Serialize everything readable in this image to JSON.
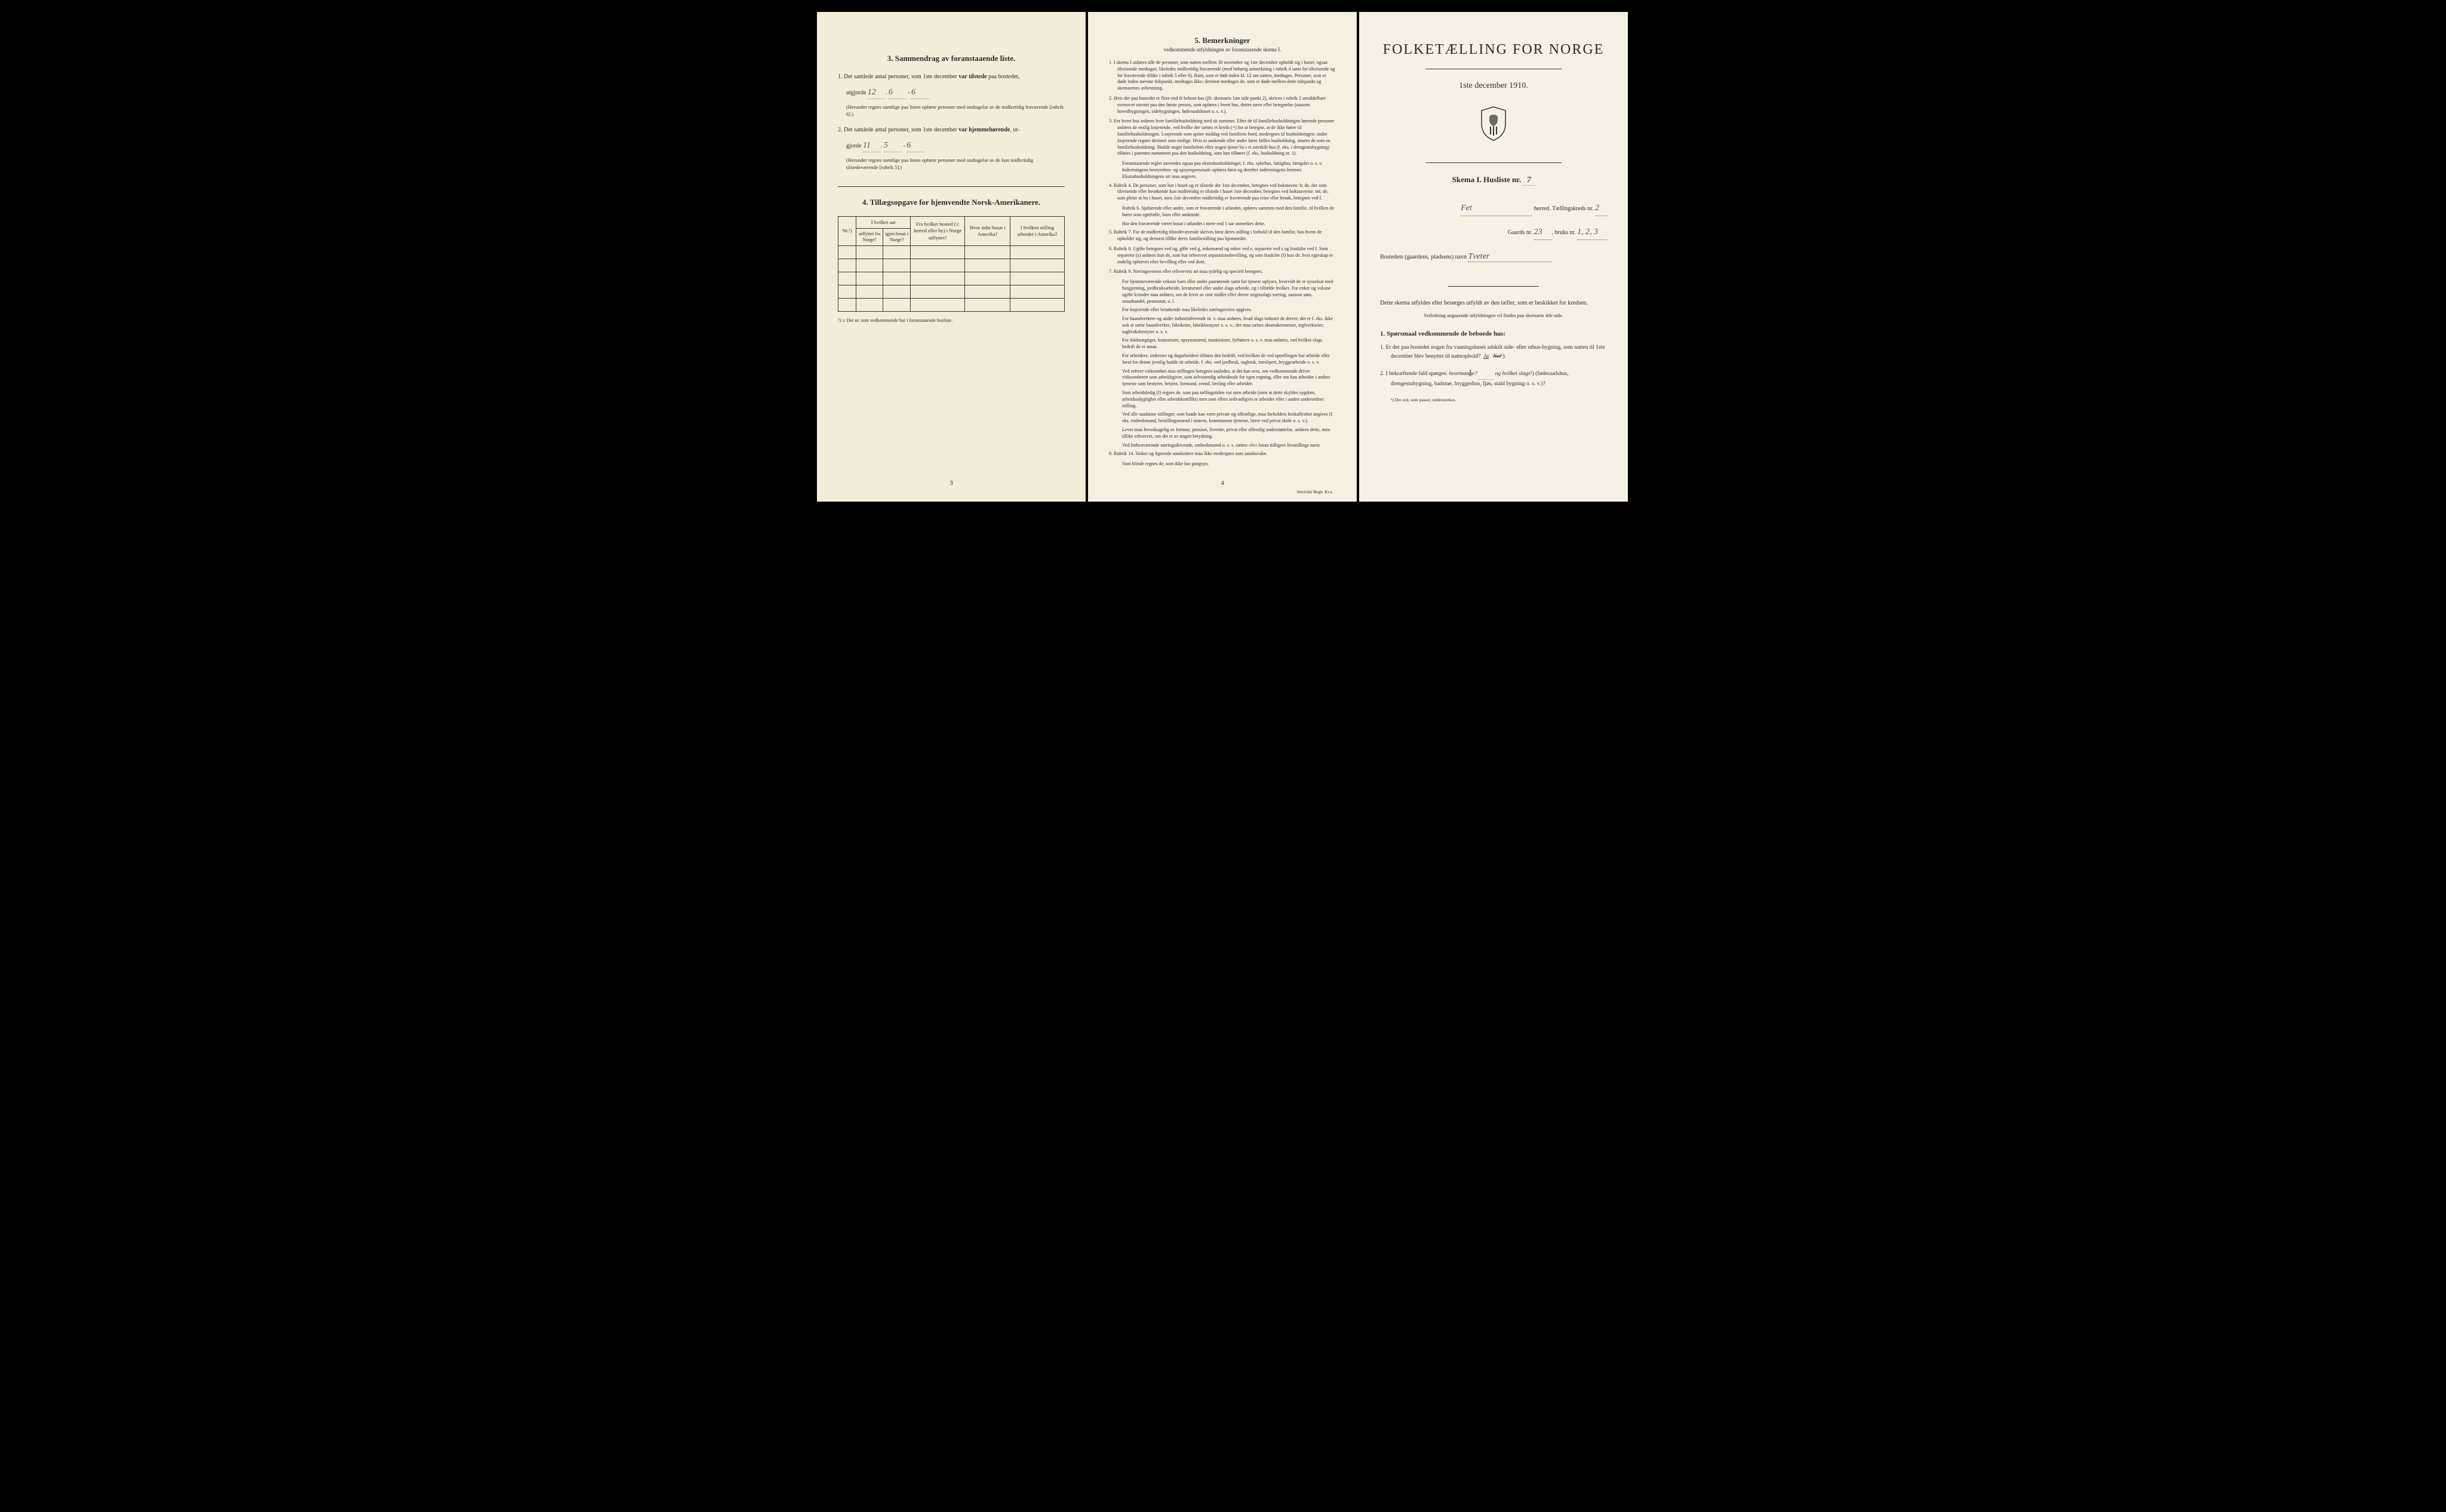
{
  "colors": {
    "paper1": "#f2ecd8",
    "paper2": "#f5f0e2",
    "paper3": "#f6f1e4",
    "ink": "#2a2a2a",
    "handwriting": "#4a4a6a",
    "border": "#333333",
    "background": "#000000"
  },
  "typography": {
    "body_family": "Georgia, Times New Roman, serif",
    "handwriting_family": "Brush Script MT, cursive",
    "main_title_pt": 24,
    "section_heading_pt": 13,
    "body_pt": 10,
    "small_pt": 8,
    "footnote_pt": 7.5
  },
  "page1": {
    "section3": {
      "heading": "3.  Sammendrag av foranstaaende liste.",
      "item1_prefix": "1.  Det samlede antal personer, som 1ste december ",
      "item1_bold": "var tilstede",
      "item1_suffix": " paa bostedet,",
      "utgjorde": "utgjorde",
      "val1_a": "12",
      "val1_b": "6",
      "val1_c": "6",
      "note1": "(Herunder regnes samtlige paa listen opførte personer med undtagelse av de midlertidig fraværende [rubrik 6].)",
      "item2_prefix": "2.  Det samlede antal personer, som 1ste december ",
      "item2_bold": "var hjemmehørende",
      "item2_suffix": ", ut-",
      "gjorde": "gjorde",
      "val2_a": "11",
      "val2_b": "5",
      "val2_c": "6",
      "note2": "(Herunder regnes samtlige paa listen opførte personer med undtagelse av de kun midlertidig tilstedeværende [rubrik 5].)"
    },
    "section4": {
      "heading": "4.  Tillægsopgave for hjemvendte Norsk-Amerikanere.",
      "columns": {
        "nr": "Nr.¹)",
        "hvilket_aar": "I hvilket aar",
        "utflyttet": "utflyttet fra Norge?",
        "igjen": "igjen bosat i Norge?",
        "fra_bosted": "Fra hvilket bosted (ɔ: herred eller by) i Norge utflyttet?",
        "hvor_sidst": "Hvor sidst bosat i Amerika?",
        "stilling": "I hvilken stilling arbeidet i Amerika?"
      },
      "empty_rows": 5,
      "footnote": "¹) ɔ: Det nr. som vedkommende har i foranstaaende husliste."
    },
    "page_number": "3"
  },
  "page2": {
    "heading": "5.  Bemerkninger",
    "subheading": "vedkommende utfyldningen av foranstaaende skema I.",
    "items": [
      "1.  I skema I anføres alle de personer, som natten mellem 30 november og 1ste december opholdt sig i huset; ogsaa tilreisende medtages; likeledes midlertidig fraværende (med behørig anmerkning i rubrik 4 samt for tilreisende og for fraværende tillike i rubrik 5 eller 6). Barn, som er født inden kl. 12 om natten, medtages. Personer, som er døde inden nævnte tidspunkt, medtages ikke; derimot medtages de, som er døde mellem dette tidspunkt og skemaernes avhentning.",
      "2.  Hvis der paa bostedet er flere end ét beboet hus (jfr. skemaets 1ste side punkt 2), skrives i rubrik 2 umiddelbart ovenover navnet paa den første person, som opføres i hvert hus, dettes navn eller betegnelse (saasom hovedbygningen, sidebygningen, føderaadshuset o. s. v.).",
      "3.  For hvert hus anføres hver familiehusholdning med sit nummer. Efter de til familiehusholdningen hørende personer anføres de enslig losjerende, ved hvilke der sættes et kryds (×) for at betegne, at de ikke hører til familiehusholdningen. Losjerende som spiser middag ved familiens bord, medregnes til husholdningen; andre losjerende regnes derimot som enslige. Hvis to søskende eller andre fører fælles husholdning, ansees de som en familiehusholdning. Skulde noget familielem eller nogen tjener bo i et særskilt hus (f. eks. i drengestubygning) tilføies i parentes nummeret paa den husholdning, som han tilhører (f. eks. husholdning nr. 1).",
      "Foranstaaende regler anvendes ogsaa paa ekstrahusholdninger, f. eks. sykehus, fattighus, fængsler o. s. v. Indretningens bestyrelses- og opsynspersonale opføres først og derefter indretningens lemmer. Ekstrahusholdningens art maa angives.",
      "4.  Rubrik 4. De personer, som bor i huset og er tilstede der 1ste december, betegnes ved bokstaven: b; de, der som tilreisende eller besøkende kun midlertidig er tilstede i huset 1ste december, betegnes ved bokstaverne: mt; de, som pleier at bo i huset, men 1ste december midlertidig er fraværende paa reise eller besøk, betegnes ved f.",
      "Rubrik 6. Sjøfarende eller andre, som er fraværende i utlandet, opføres sammen med den familie, til hvilken de hører som egtefælle, barn eller søskende.",
      "Har den fraværende været bosat i utlandet i mere end 1 aar anmerkes dette.",
      "5.  Rubrik 7. For de midlertidig tilstedeværende skrives først deres stilling i forhold til den familie, hos hvem de opholder sig, og dernæst tillike deres familiestilling paa hjemstedet.",
      "6.  Rubrik 8. Ugifte betegnes ved ug, gifte ved g, enkemænd og enker ved e, separerte ved s og fraskilte ved f. Som separerte (s) anføres kun de, som har erhvervet separationsbevilling, og som fraskilte (f) kun de, hvis egteskap er endelig ophævet efter bevilling eller ved dom.",
      "7.  Rubrik 9. Næringsveiens eller erhvervets art maa tydelig og specielt betegnes.",
      "For hjemmeværende voksne barn eller andre paarørende samt for tjenere oplyses, hvorvidt de er sysselsat med husgjerning, jordbruksarbeide, kreaturstel eller andet slags arbeide, og i tilfælde hvilket. For enker og voksne ugifte kvinder maa anføres, om de lever av sine midler eller driver nogenslags næring, saasom søm, smaahandel, pensionat, o. l.",
      "For losjerende eller besøkende maa likeledes næringsveien opgives.",
      "For haandverkere og andre industridrivende m. v. maa anføres, hvad slags industri de driver; det er f. eks. ikke nok at sætte haandverker, fabrikeier, fabrikbestyrer o. s. v.; der maa sættes skomakermester, teglverkseier, sagbruksbestyrer o. s. v.",
      "For fuldmægtiger, kontorister, opsynsmænd, maskinister, fyrbøtere o. s. v. maa anføres, ved hvilket slags bedrift de er ansat.",
      "For arbeidere, inderster og dagarbeidere tilføies den bedrift, ved hvilken de ved optællingen har arbeide eller forut for denne jevnlig hadde sit arbeide, f. eks. ved jordbruk, sagbruk, træsliperi, bryggearbeide o. s. v.",
      "Ved enhver virksomhet maa stillingen betegnes saaledes, at det kan sees, om vedkommende driver virksomheten som arbeidsgiver, som selvstændig arbeidende for egen regning, eller om han arbeider i andres tjeneste som bestyrer, betjent, formand, svend, lærling eller arbeider.",
      "Som arbeidsledig (l) regnes de, som paa tællingstiden var uten arbeide (uten at dette skyldes sygdom, arbeidsudygtighet eller arbeidskonflikt) men som ellers sedvanligvis er arbeider eller i anden underordnet stilling.",
      "Ved alle saadanne stillinger, som baade kan være private og offentlige, maa forholdets beskaffenhet angives (f. eks. embedsmand, bestillingsmænd i statens, kommunens tjeneste, lærer ved privat skole o. s. v.).",
      "Lever man hovedsagelig av formue, pension, livrente, privat eller offentlig understøttelse, anføres dette, men tillike erhvervet, om det er av nogen betydning.",
      "Ved forhenværende næringsdrivende, embedsmænd o. s. v. sættes «fv» foran tidligere livsstillings navn.",
      "8.  Rubrik 14. Sinker og lignende aandssløve maa ikke medregnes som aandssvake.",
      "Som blinde regnes de, som ikke har gangsyn."
    ],
    "page_number": "4",
    "printer": "Steen'ske Bogtr. Kr.a."
  },
  "page3": {
    "title": "FOLKETÆLLING FOR NORGE",
    "subtitle": "1ste december 1910.",
    "skema": "Skema I.  Husliste nr.",
    "skema_nr": "7",
    "herred_label": "herred.   Tællingskreds nr.",
    "herred_val": "Fet",
    "kreds_nr": "2",
    "gaards_label": "Gaards nr.",
    "gaards_nr": "23",
    "bruks_label": "bruks nr.",
    "bruks_nr": "1, 2, 3",
    "bostedet_label": "Bostedets (gaardens, pladsens) navn",
    "bostedet_val": "Tveter",
    "instruction1": "Dette skema utfyldes eller besørges utfyldt av den tæller, som er beskikket for kredsen.",
    "instruction2": "Veiledning angaaende utfyldningen vil findes paa skemaets 4de side.",
    "q_heading": "1. Spørsmaal vedkommende de beboede hus:",
    "q1": "1.  Er der paa bostedet nogen fra vaaningshuset adskilt side- eller uthus-bygning, som natten til 1ste december blev benyttet til natteophold?",
    "q1_ja": "Ja",
    "q1_nei": "Nei",
    "q1_sup": "¹).",
    "q2_prefix": "2.  I bekræftende fald spørges: ",
    "q2_hvormange": "hvormange?",
    "q2_val": "1",
    "q2_mid": "og hvilket slags",
    "q2_sup": "¹)",
    "q2_options": "(føderaadshus, drengestubygning, badstue, bryggerhus, fjøs, stald bygning o. s. v.)?",
    "footnote": "¹) Det ord, som passer, understrekes."
  }
}
